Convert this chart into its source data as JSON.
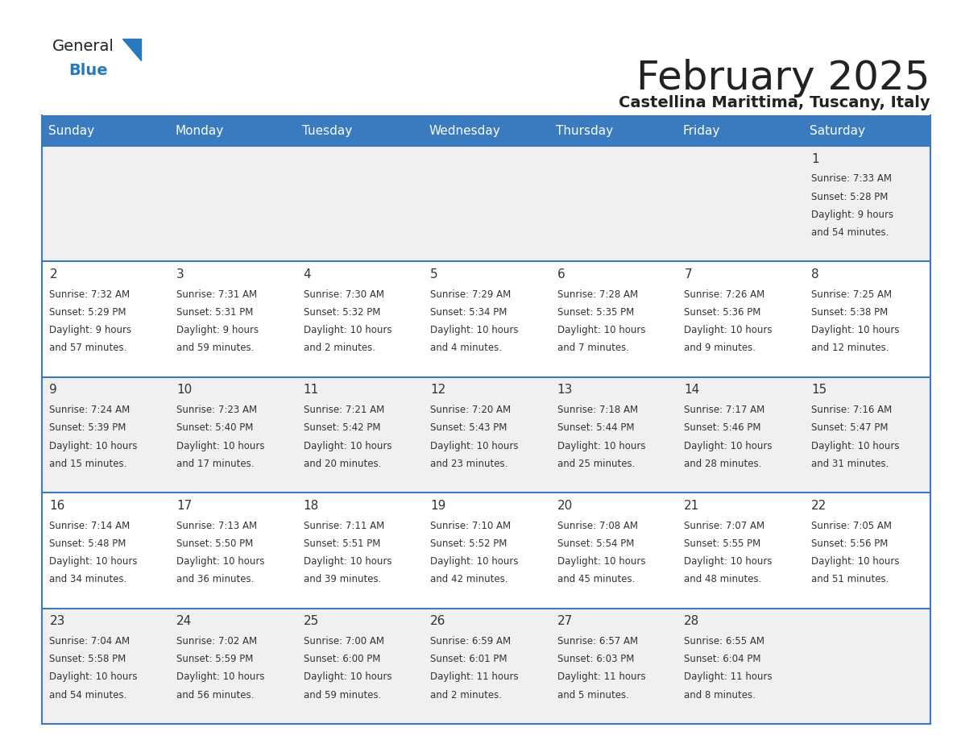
{
  "title": "February 2025",
  "subtitle": "Castellina Marittima, Tuscany, Italy",
  "days_of_week": [
    "Sunday",
    "Monday",
    "Tuesday",
    "Wednesday",
    "Thursday",
    "Friday",
    "Saturday"
  ],
  "header_bg": "#3a7abf",
  "header_text": "#ffffff",
  "row_bg_gray": "#f0f0f0",
  "row_bg_white": "#ffffff",
  "border_color": "#3a7abf",
  "day_number_color": "#333333",
  "text_color": "#333333",
  "title_color": "#222222",
  "subtitle_color": "#222222",
  "logo_general_color": "#222222",
  "logo_blue_color": "#2878be",
  "calendar_data": [
    [
      null,
      null,
      null,
      null,
      null,
      null,
      1
    ],
    [
      2,
      3,
      4,
      5,
      6,
      7,
      8
    ],
    [
      9,
      10,
      11,
      12,
      13,
      14,
      15
    ],
    [
      16,
      17,
      18,
      19,
      20,
      21,
      22
    ],
    [
      23,
      24,
      25,
      26,
      27,
      28,
      null
    ]
  ],
  "sunrise_data": {
    "1": "7:33 AM",
    "2": "7:32 AM",
    "3": "7:31 AM",
    "4": "7:30 AM",
    "5": "7:29 AM",
    "6": "7:28 AM",
    "7": "7:26 AM",
    "8": "7:25 AM",
    "9": "7:24 AM",
    "10": "7:23 AM",
    "11": "7:21 AM",
    "12": "7:20 AM",
    "13": "7:18 AM",
    "14": "7:17 AM",
    "15": "7:16 AM",
    "16": "7:14 AM",
    "17": "7:13 AM",
    "18": "7:11 AM",
    "19": "7:10 AM",
    "20": "7:08 AM",
    "21": "7:07 AM",
    "22": "7:05 AM",
    "23": "7:04 AM",
    "24": "7:02 AM",
    "25": "7:00 AM",
    "26": "6:59 AM",
    "27": "6:57 AM",
    "28": "6:55 AM"
  },
  "sunset_data": {
    "1": "5:28 PM",
    "2": "5:29 PM",
    "3": "5:31 PM",
    "4": "5:32 PM",
    "5": "5:34 PM",
    "6": "5:35 PM",
    "7": "5:36 PM",
    "8": "5:38 PM",
    "9": "5:39 PM",
    "10": "5:40 PM",
    "11": "5:42 PM",
    "12": "5:43 PM",
    "13": "5:44 PM",
    "14": "5:46 PM",
    "15": "5:47 PM",
    "16": "5:48 PM",
    "17": "5:50 PM",
    "18": "5:51 PM",
    "19": "5:52 PM",
    "20": "5:54 PM",
    "21": "5:55 PM",
    "22": "5:56 PM",
    "23": "5:58 PM",
    "24": "5:59 PM",
    "25": "6:00 PM",
    "26": "6:01 PM",
    "27": "6:03 PM",
    "28": "6:04 PM"
  },
  "daylight_data": {
    "1": "9 hours\nand 54 minutes.",
    "2": "9 hours\nand 57 minutes.",
    "3": "9 hours\nand 59 minutes.",
    "4": "10 hours\nand 2 minutes.",
    "5": "10 hours\nand 4 minutes.",
    "6": "10 hours\nand 7 minutes.",
    "7": "10 hours\nand 9 minutes.",
    "8": "10 hours\nand 12 minutes.",
    "9": "10 hours\nand 15 minutes.",
    "10": "10 hours\nand 17 minutes.",
    "11": "10 hours\nand 20 minutes.",
    "12": "10 hours\nand 23 minutes.",
    "13": "10 hours\nand 25 minutes.",
    "14": "10 hours\nand 28 minutes.",
    "15": "10 hours\nand 31 minutes.",
    "16": "10 hours\nand 34 minutes.",
    "17": "10 hours\nand 36 minutes.",
    "18": "10 hours\nand 39 minutes.",
    "19": "10 hours\nand 42 minutes.",
    "20": "10 hours\nand 45 minutes.",
    "21": "10 hours\nand 48 minutes.",
    "22": "10 hours\nand 51 minutes.",
    "23": "10 hours\nand 54 minutes.",
    "24": "10 hours\nand 56 minutes.",
    "25": "10 hours\nand 59 minutes.",
    "26": "11 hours\nand 2 minutes.",
    "27": "11 hours\nand 5 minutes.",
    "28": "11 hours\nand 8 minutes."
  }
}
